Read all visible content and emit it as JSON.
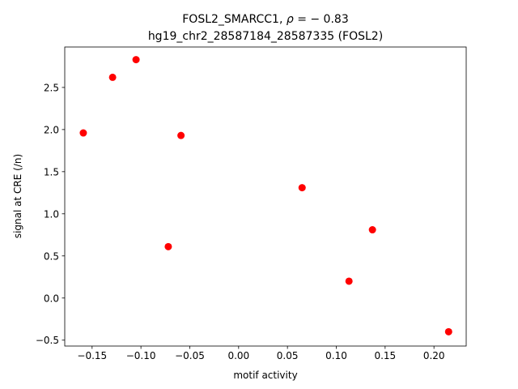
{
  "chart_data": {
    "type": "scatter",
    "title_prefix": "FOSL2_SMARCC1, ",
    "title_rho_symbol": "ρ",
    "title_rho_value": " = − 0.83",
    "subtitle": "hg19_chr2_28587184_28587335 (FOSL2)",
    "xlabel": "motif activity",
    "ylabel": "signal at CRE (/n)",
    "xlim": [
      -0.178,
      0.233
    ],
    "ylim": [
      -0.57,
      2.98
    ],
    "xticks": [
      -0.15,
      -0.1,
      -0.05,
      0.0,
      0.05,
      0.1,
      0.15,
      0.2
    ],
    "xtick_labels": [
      "−0.15",
      "−0.10",
      "−0.05",
      "0.00",
      "0.05",
      "0.10",
      "0.15",
      "0.20"
    ],
    "yticks": [
      -0.5,
      0.0,
      0.5,
      1.0,
      1.5,
      2.0,
      2.5
    ],
    "ytick_labels": [
      "−0.5",
      "0.0",
      "0.5",
      "1.0",
      "1.5",
      "2.0",
      "2.5"
    ],
    "grid": false,
    "marker_color": "#ff0000",
    "points": [
      {
        "x": -0.159,
        "y": 1.96
      },
      {
        "x": -0.129,
        "y": 2.62
      },
      {
        "x": -0.105,
        "y": 2.83
      },
      {
        "x": -0.072,
        "y": 0.61
      },
      {
        "x": -0.059,
        "y": 1.93
      },
      {
        "x": 0.065,
        "y": 1.31
      },
      {
        "x": 0.113,
        "y": 0.2
      },
      {
        "x": 0.137,
        "y": 0.81
      },
      {
        "x": 0.215,
        "y": -0.4
      }
    ]
  }
}
